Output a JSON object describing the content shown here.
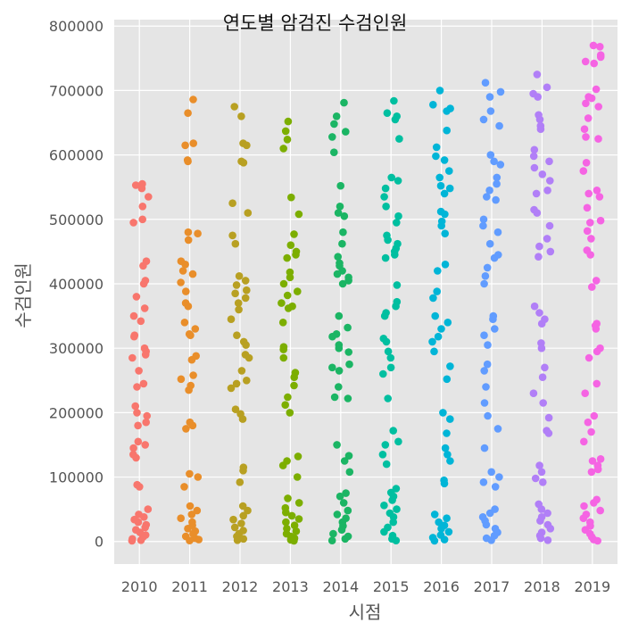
{
  "chart_data": {
    "type": "scatter",
    "variant": "strip",
    "title": "연도별 암검진 수검인원",
    "xlabel": "시점",
    "ylabel": "수검인원",
    "categories": [
      "2010",
      "2011",
      "2012",
      "2013",
      "2014",
      "2015",
      "2016",
      "2017",
      "2018",
      "2019"
    ],
    "ylim": [
      -35000,
      810000
    ],
    "yticks": [
      0,
      100000,
      200000,
      300000,
      400000,
      500000,
      600000,
      700000,
      800000
    ],
    "yticklabels": [
      "0",
      "100000",
      "200000",
      "300000",
      "400000",
      "500000",
      "600000",
      "700000",
      "800000"
    ],
    "grid": true,
    "background": "#E5E5E5",
    "colors": [
      "#F8766D",
      "#E98E2A",
      "#B8A022",
      "#7CAE00",
      "#1BB564",
      "#00BFA0",
      "#00B5D7",
      "#619CFF",
      "#B17FF7",
      "#F564E3"
    ],
    "series": [
      {
        "category": "2010",
        "values": [
          555000,
          553000,
          548000,
          535000,
          520000,
          500000,
          495000,
          435000,
          428000,
          405000,
          400000,
          380000,
          362000,
          350000,
          342000,
          320000,
          318000,
          300000,
          295000,
          290000,
          285000,
          265000,
          245000,
          240000,
          210000,
          200000,
          195000,
          185000,
          180000,
          155000,
          150000,
          145000,
          135000,
          130000,
          88000,
          85000,
          50000,
          42000,
          38000,
          34000,
          30000,
          26000,
          22000,
          18000,
          14000,
          10000,
          7000,
          4000,
          2000,
          1000
        ]
      },
      {
        "category": "2011",
        "values": [
          686000,
          665000,
          618000,
          615000,
          592000,
          590000,
          480000,
          478000,
          468000,
          435000,
          430000,
          420000,
          415000,
          402000,
          388000,
          370000,
          365000,
          340000,
          330000,
          322000,
          320000,
          288000,
          282000,
          258000,
          252000,
          242000,
          235000,
          185000,
          180000,
          175000,
          105000,
          100000,
          85000,
          55000,
          48000,
          42000,
          36000,
          30000,
          25000,
          20000,
          16000,
          12000,
          8000,
          5000,
          3000,
          1500
        ]
      },
      {
        "category": "2012",
        "values": [
          675000,
          660000,
          618000,
          615000,
          590000,
          588000,
          525000,
          510000,
          475000,
          462000,
          412000,
          405000,
          398000,
          390000,
          385000,
          378000,
          370000,
          360000,
          345000,
          320000,
          310000,
          305000,
          290000,
          285000,
          265000,
          250000,
          245000,
          238000,
          205000,
          198000,
          190000,
          115000,
          110000,
          92000,
          55000,
          48000,
          40000,
          34000,
          28000,
          22000,
          17000,
          12000,
          8000,
          4000,
          2000
        ]
      },
      {
        "category": "2013",
        "values": [
          652000,
          637000,
          624000,
          610000,
          534000,
          508000,
          477000,
          460000,
          450000,
          445000,
          440000,
          418000,
          410000,
          400000,
          388000,
          382000,
          370000,
          365000,
          362000,
          340000,
          302000,
          298000,
          285000,
          262000,
          255000,
          242000,
          224000,
          212000,
          200000,
          132000,
          125000,
          118000,
          100000,
          67000,
          60000,
          52000,
          45000,
          40000,
          35000,
          30000,
          25000,
          20000,
          16000,
          12000,
          8000,
          5000,
          2500,
          1000
        ]
      },
      {
        "category": "2014",
        "values": [
          681000,
          660000,
          648000,
          636000,
          628000,
          604000,
          552000,
          520000,
          510000,
          505000,
          480000,
          462000,
          442000,
          432000,
          428000,
          420000,
          415000,
          410000,
          405000,
          400000,
          350000,
          332000,
          322000,
          318000,
          305000,
          300000,
          294000,
          275000,
          270000,
          265000,
          240000,
          224000,
          222000,
          150000,
          133000,
          125000,
          108000,
          75000,
          70000,
          60000,
          48000,
          42000,
          36000,
          30000,
          24000,
          18000,
          12000,
          8000,
          4000,
          1500
        ]
      },
      {
        "category": "2015",
        "values": [
          684000,
          665000,
          660000,
          655000,
          625000,
          565000,
          560000,
          548000,
          535000,
          520000,
          505000,
          495000,
          475000,
          468000,
          462000,
          455000,
          450000,
          445000,
          440000,
          398000,
          372000,
          365000,
          355000,
          350000,
          315000,
          310000,
          295000,
          285000,
          270000,
          260000,
          222000,
          172000,
          155000,
          150000,
          135000,
          120000,
          82000,
          76000,
          70000,
          64000,
          56000,
          50000,
          44000,
          38000,
          30000,
          22000,
          15000,
          9000,
          4000,
          1500
        ]
      },
      {
        "category": "2016",
        "values": [
          700000,
          678000,
          672000,
          668000,
          638000,
          612000,
          598000,
          592000,
          575000,
          565000,
          552000,
          548000,
          540000,
          512000,
          508000,
          497000,
          490000,
          478000,
          430000,
          420000,
          388000,
          378000,
          350000,
          340000,
          330000,
          318000,
          310000,
          295000,
          272000,
          252000,
          200000,
          190000,
          168000,
          145000,
          135000,
          125000,
          95000,
          90000,
          42000,
          36000,
          30000,
          25000,
          20000,
          15000,
          10000,
          6000,
          3000,
          1000
        ]
      },
      {
        "category": "2017",
        "values": [
          712000,
          698000,
          690000,
          668000,
          655000,
          645000,
          600000,
          590000,
          585000,
          565000,
          555000,
          545000,
          535000,
          530000,
          500000,
          490000,
          480000,
          462000,
          445000,
          440000,
          425000,
          412000,
          400000,
          350000,
          345000,
          330000,
          320000,
          305000,
          275000,
          265000,
          240000,
          215000,
          195000,
          175000,
          145000,
          108000,
          100000,
          92000,
          85000,
          50000,
          44000,
          38000,
          32000,
          26000,
          20000,
          14000,
          9000,
          5000,
          2000
        ]
      },
      {
        "category": "2018",
        "values": [
          725000,
          705000,
          695000,
          690000,
          662000,
          655000,
          645000,
          640000,
          608000,
          598000,
          590000,
          580000,
          570000,
          560000,
          545000,
          540000,
          515000,
          510000,
          490000,
          470000,
          458000,
          450000,
          442000,
          365000,
          355000,
          345000,
          338000,
          308000,
          300000,
          270000,
          255000,
          230000,
          215000,
          192000,
          172000,
          168000,
          118000,
          108000,
          98000,
          92000,
          58000,
          50000,
          44000,
          38000,
          32000,
          26000,
          20000,
          14000,
          9000,
          5000,
          2000
        ]
      },
      {
        "category": "2019",
        "values": [
          770000,
          768000,
          755000,
          752000,
          745000,
          742000,
          702000,
          690000,
          688000,
          680000,
          675000,
          657000,
          640000,
          628000,
          625000,
          588000,
          575000,
          545000,
          540000,
          535000,
          518000,
          498000,
          495000,
          482000,
          470000,
          452000,
          445000,
          405000,
          395000,
          338000,
          335000,
          330000,
          300000,
          295000,
          285000,
          245000,
          230000,
          195000,
          185000,
          170000,
          155000,
          128000,
          125000,
          118000,
          112000,
          108000,
          65000,
          60000,
          55000,
          48000,
          42000,
          36000,
          30000,
          24000,
          18000,
          12000,
          7000,
          3000,
          1000
        ]
      }
    ]
  }
}
